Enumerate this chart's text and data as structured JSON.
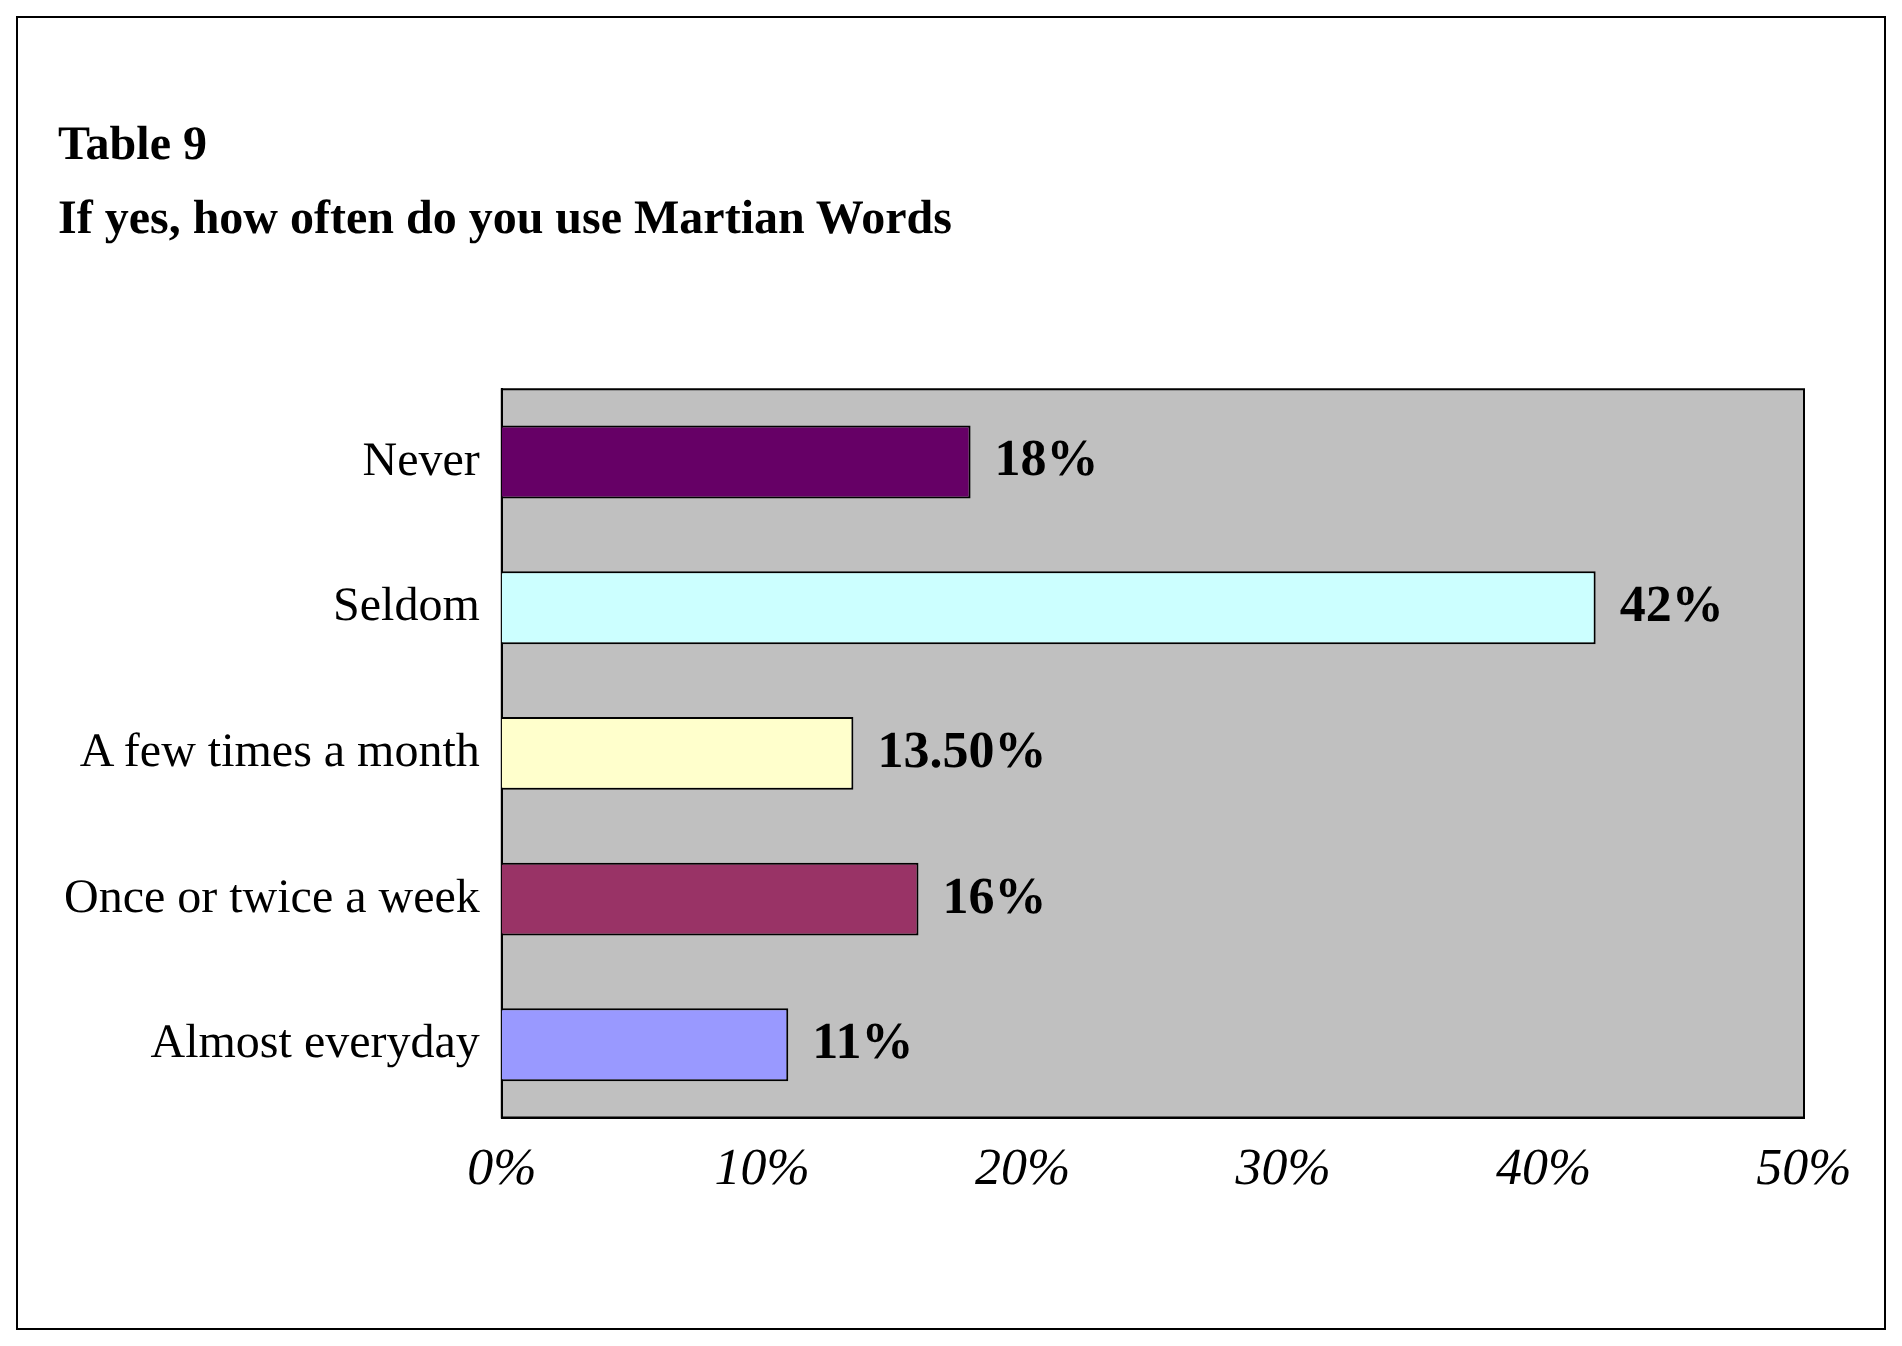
{
  "chart_data": {
    "type": "bar",
    "orientation": "horizontal",
    "title": "Table 9",
    "subtitle": "If yes, how often do you use Martian Words",
    "categories": [
      "Never",
      "Seldom",
      "A few times a month",
      "Once or twice a week",
      "Almost everyday"
    ],
    "values": [
      18,
      42,
      13.5,
      16,
      11
    ],
    "colors": [
      "#660066",
      "#ccffff",
      "#ffffcc",
      "#993366",
      "#9999ff"
    ],
    "value_labels": [
      "18%",
      "42%",
      "13.50%",
      "16%",
      "11%"
    ],
    "xlim": [
      0,
      50
    ],
    "xticks": [
      {
        "value": 0,
        "label": "0%"
      },
      {
        "value": 10,
        "label": "10%"
      },
      {
        "value": 20,
        "label": "20%"
      },
      {
        "value": 30,
        "label": "30%"
      },
      {
        "value": 40,
        "label": "40%"
      },
      {
        "value": 50,
        "label": "50%"
      }
    ],
    "grid": false,
    "legend": false
  }
}
